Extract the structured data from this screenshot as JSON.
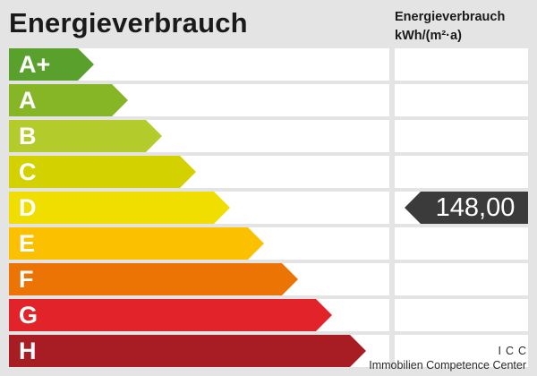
{
  "title": "Energieverbrauch",
  "unit_header": {
    "line1": "Energieverbrauch",
    "line2": "kWh/(m²·a)"
  },
  "scale": [
    {
      "label": "A+",
      "color": "#5aa02c"
    },
    {
      "label": "A",
      "color": "#86b526"
    },
    {
      "label": "B",
      "color": "#b3cc2c"
    },
    {
      "label": "C",
      "color": "#d3d200"
    },
    {
      "label": "D",
      "color": "#f0de00"
    },
    {
      "label": "E",
      "color": "#fbc000"
    },
    {
      "label": "F",
      "color": "#ec7404"
    },
    {
      "label": "G",
      "color": "#e2232a"
    },
    {
      "label": "H",
      "color": "#a71d23"
    }
  ],
  "current": {
    "class": "D",
    "value": "148,00",
    "marker_color": "#3b3b3b"
  },
  "footer": {
    "abbr": "ICC",
    "name": "Immobilien Competence Center"
  }
}
